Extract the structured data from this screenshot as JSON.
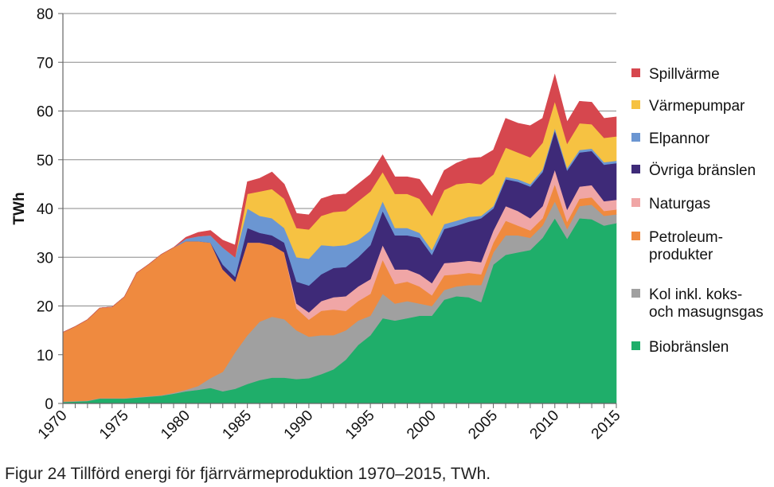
{
  "caption": "Figur 24 Tillförd energi för fjärrvärmeproduktion 1970–2015, TWh.",
  "chart_data": {
    "type": "area",
    "stacked": true,
    "title": "",
    "xlabel": "",
    "ylabel": "TWh",
    "ylim": [
      0,
      80
    ],
    "yticks": [
      0,
      10,
      20,
      30,
      40,
      50,
      60,
      70,
      80
    ],
    "xlim": [
      1970,
      2015
    ],
    "xticks": [
      1970,
      1975,
      1980,
      1985,
      1990,
      1995,
      2000,
      2005,
      2010,
      2015
    ],
    "grid": "horizontal",
    "legend_position": "right",
    "x": [
      1970,
      1971,
      1972,
      1973,
      1974,
      1975,
      1976,
      1977,
      1978,
      1979,
      1980,
      1981,
      1982,
      1983,
      1984,
      1985,
      1986,
      1987,
      1988,
      1989,
      1990,
      1991,
      1992,
      1993,
      1994,
      1995,
      1996,
      1997,
      1998,
      1999,
      2000,
      2001,
      2002,
      2003,
      2004,
      2005,
      2006,
      2007,
      2008,
      2009,
      2010,
      2011,
      2012,
      2013,
      2014,
      2015
    ],
    "series": [
      {
        "name": "Biobränslen",
        "color": "#1fae6a",
        "values": [
          0.3,
          0.4,
          0.5,
          1.0,
          1.0,
          1.0,
          1.2,
          1.4,
          1.6,
          2.0,
          2.5,
          2.8,
          3.2,
          2.5,
          3.0,
          4.0,
          4.8,
          5.3,
          5.3,
          5.0,
          5.2,
          6.0,
          7.0,
          9.0,
          12.0,
          14.0,
          17.5,
          17.0,
          17.5,
          18.0,
          18.0,
          21.3,
          22.0,
          21.8,
          20.8,
          28.5,
          30.5,
          31.0,
          31.5,
          34.0,
          38.0,
          33.8,
          38.0,
          37.8,
          36.5,
          37.0
        ]
      },
      {
        "name": "Kol inkl. koks-\noch masugnsgas",
        "color": "#a0a0a0",
        "values": [
          0.1,
          0.1,
          0.1,
          0.1,
          0.1,
          0.1,
          0.1,
          0.1,
          0.1,
          0.2,
          0.3,
          0.8,
          2.0,
          4.0,
          7.5,
          10.0,
          12.0,
          12.5,
          12.0,
          10.0,
          8.5,
          8.0,
          7.0,
          6.0,
          5.0,
          4.0,
          5.0,
          3.5,
          3.5,
          2.5,
          2.0,
          2.0,
          2.0,
          2.5,
          3.5,
          2.5,
          4.0,
          3.5,
          2.5,
          2.5,
          3.5,
          2.0,
          2.5,
          3.0,
          2.0,
          1.8
        ]
      },
      {
        "name": "Petroleum-\nprodukter",
        "color": "#ef8a3f",
        "values": [
          14.2,
          15.3,
          16.6,
          18.5,
          18.7,
          20.8,
          25.5,
          27.1,
          28.9,
          29.8,
          30.5,
          29.7,
          27.8,
          21.0,
          14.5,
          19.0,
          16.2,
          14.7,
          13.7,
          4.5,
          3.5,
          5.0,
          5.3,
          4.0,
          4.0,
          4.5,
          7.0,
          4.0,
          4.0,
          3.5,
          2.2,
          3.0,
          2.5,
          2.5,
          2.2,
          2.0,
          3.0,
          2.0,
          1.5,
          1.5,
          3.5,
          1.5,
          1.5,
          1.5,
          1.0,
          1.0
        ]
      },
      {
        "name": "Naturgas",
        "color": "#f0a6a6",
        "values": [
          0,
          0,
          0,
          0,
          0,
          0,
          0,
          0,
          0,
          0,
          0,
          0,
          0,
          0,
          0,
          0,
          0,
          0,
          0,
          1.0,
          1.5,
          2.0,
          2.5,
          3.0,
          3.0,
          3.0,
          3.0,
          3.0,
          2.5,
          2.5,
          2.5,
          2.5,
          2.5,
          2.5,
          2.5,
          2.5,
          3.0,
          3.0,
          2.5,
          2.5,
          3.0,
          2.5,
          2.5,
          2.5,
          2.0,
          2.0
        ]
      },
      {
        "name": "Övriga bränslen",
        "color": "#3e2a78",
        "values": [
          0,
          0,
          0,
          0,
          0,
          0,
          0,
          0,
          0,
          0,
          0,
          0,
          0,
          1.0,
          1.0,
          3.0,
          2.0,
          2.0,
          2.0,
          4.5,
          5.5,
          5.5,
          6.0,
          6.0,
          6.0,
          7.0,
          7.0,
          7.0,
          7.0,
          7.5,
          5.8,
          7.0,
          7.5,
          8.0,
          9.0,
          4.5,
          5.5,
          6.0,
          6.5,
          7.0,
          8.0,
          8.0,
          7.0,
          7.0,
          7.5,
          7.5
        ]
      },
      {
        "name": "Elpannor",
        "color": "#6b96d2",
        "values": [
          0,
          0,
          0,
          0,
          0,
          0,
          0,
          0,
          0,
          0,
          0.5,
          1.0,
          1.5,
          3.5,
          4.0,
          4.0,
          3.5,
          3.5,
          3.0,
          5.0,
          5.5,
          6.0,
          4.5,
          4.5,
          3.5,
          3.0,
          2.0,
          1.5,
          1.5,
          1.0,
          1.0,
          1.0,
          1.0,
          1.0,
          0.5,
          0.5,
          0.5,
          0.5,
          0.5,
          0.5,
          0.5,
          0.5,
          0.5,
          0.5,
          0.5,
          0.5
        ]
      },
      {
        "name": "Värmepumpar",
        "color": "#f6c242",
        "values": [
          0,
          0,
          0,
          0,
          0,
          0,
          0,
          0,
          0,
          0,
          0,
          0,
          0,
          0,
          0,
          3.0,
          5.0,
          6.0,
          6.0,
          6.0,
          6.0,
          6.0,
          7.0,
          7.0,
          8.0,
          8.0,
          6.0,
          7.0,
          7.0,
          7.0,
          7.0,
          7.0,
          7.5,
          7.0,
          6.5,
          6.5,
          6.0,
          5.5,
          5.5,
          5.5,
          5.5,
          5.0,
          5.5,
          5.0,
          5.0,
          5.0
        ]
      },
      {
        "name": "Spillvärme",
        "color": "#d6474e",
        "values": [
          0,
          0,
          0,
          0,
          0,
          0,
          0,
          0,
          0,
          0,
          0.3,
          0.8,
          1.0,
          1.5,
          2.5,
          2.5,
          2.7,
          3.5,
          3.0,
          3.0,
          3.0,
          3.5,
          3.5,
          3.5,
          3.5,
          3.5,
          3.5,
          3.5,
          3.5,
          4.0,
          4.0,
          4.0,
          4.3,
          5.0,
          5.5,
          5.0,
          6.0,
          6.0,
          6.5,
          5.0,
          5.5,
          4.5,
          4.5,
          4.5,
          4.0,
          4.0
        ]
      }
    ],
    "legend_order": [
      "Spillvärme",
      "Värmepumpar",
      "Elpannor",
      "Övriga bränslen",
      "Naturgas",
      "Petroleum-\nprodukter",
      "Kol inkl. koks-\noch masugnsgas",
      "Biobränslen"
    ]
  }
}
